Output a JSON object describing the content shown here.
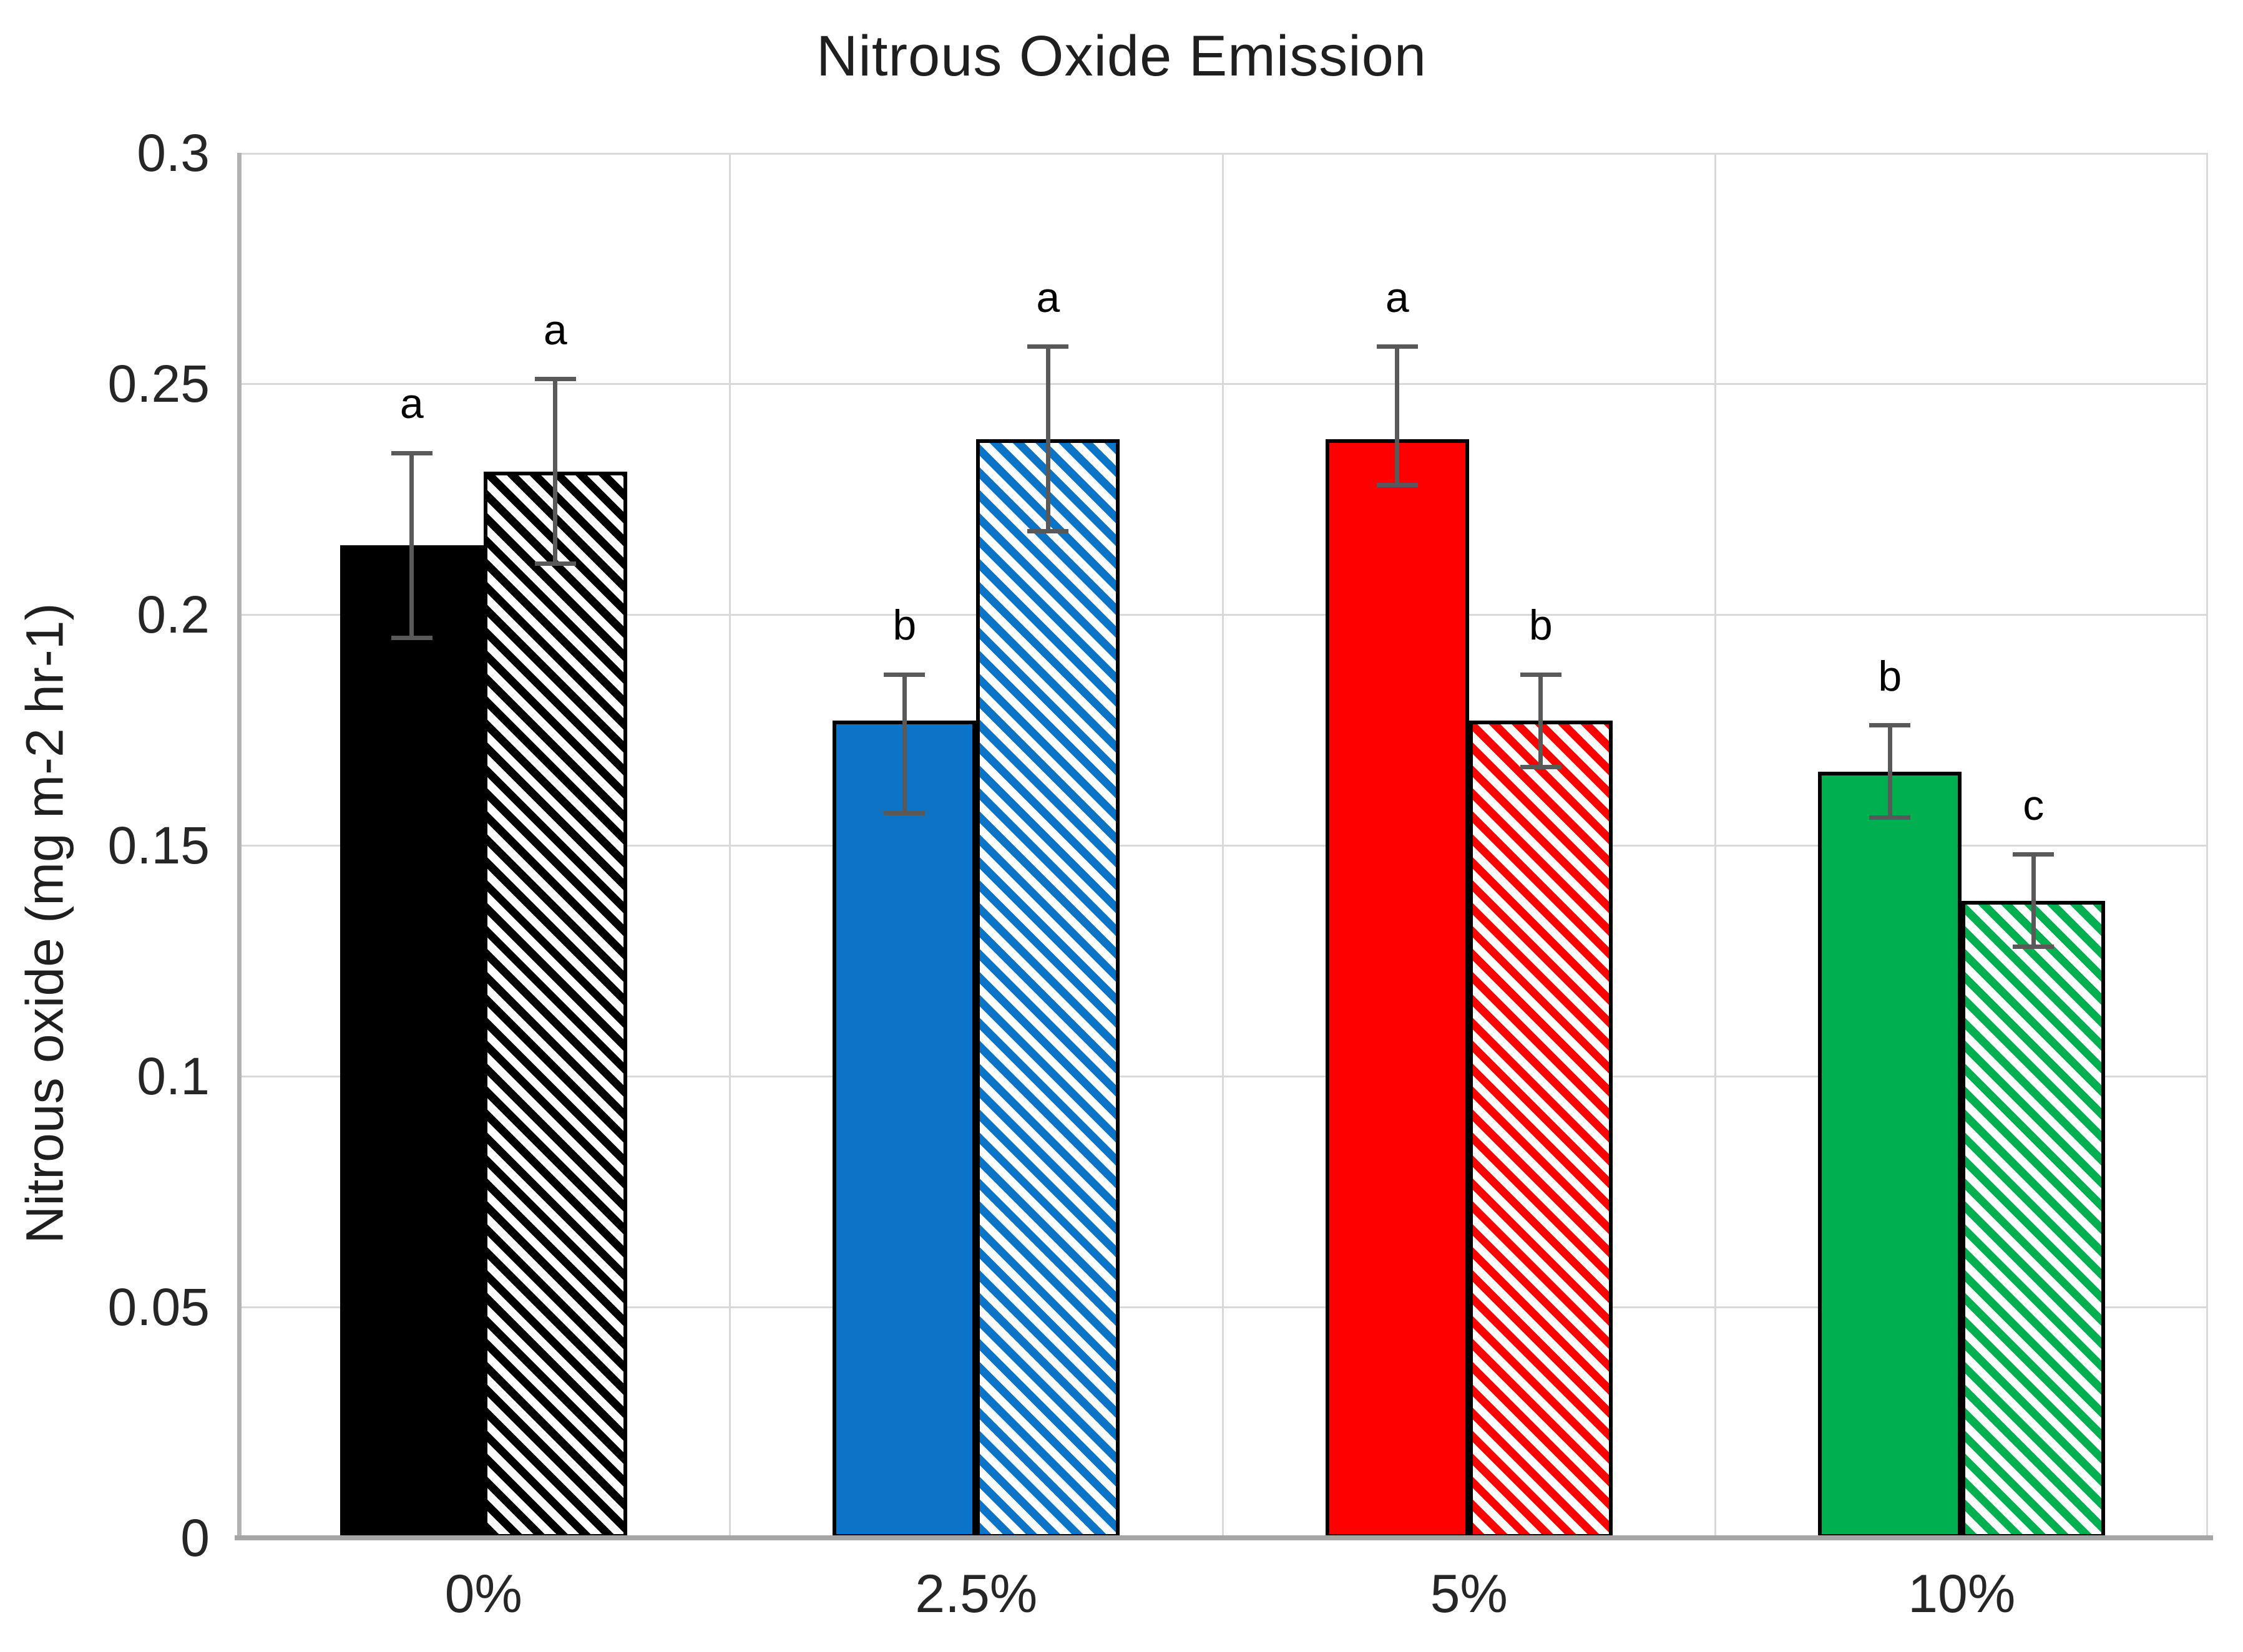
{
  "figure": {
    "title": "Nitrous Oxide Emission",
    "y_axis_title": "Nitrous oxide (mg m-2 hr-1)"
  },
  "chart_data": {
    "type": "bar",
    "title": "Nitrous Oxide Emission",
    "xlabel": "",
    "ylabel": "Nitrous oxide (mg m-2 hr-1)",
    "ylim": [
      0,
      0.3
    ],
    "ytick_interval": 0.05,
    "ytick_labels": [
      "0.3",
      "0.25",
      "0.2",
      "0.15",
      "0.1",
      "0.05",
      "0"
    ],
    "grid": true,
    "legend_position": "none",
    "categories": [
      "0%",
      "2.5%",
      "5%",
      "10%"
    ],
    "series": [
      {
        "name": "solid-fill",
        "pattern": "solid",
        "values": [
          0.215,
          0.177,
          0.238,
          0.166
        ],
        "error_up": [
          0.02,
          0.01,
          0.02,
          0.01
        ],
        "error_down": [
          0.02,
          0.02,
          0.01,
          0.01
        ],
        "sig_letters": [
          "a",
          "b",
          "a",
          "b"
        ],
        "colors": [
          "#000000",
          "#0c74c6",
          "#ff0000",
          "#00b050"
        ]
      },
      {
        "name": "diagonal-hatch-fill",
        "pattern": "diagonal-hatch",
        "values": [
          0.231,
          0.238,
          0.177,
          0.138
        ],
        "error_up": [
          0.02,
          0.02,
          0.01,
          0.01
        ],
        "error_down": [
          0.02,
          0.02,
          0.01,
          0.01
        ],
        "sig_letters": [
          "a",
          "a",
          "b",
          "c"
        ],
        "colors": [
          "#000000",
          "#0c74c6",
          "#ff0000",
          "#00b050"
        ]
      }
    ]
  },
  "style": {
    "gridline_color": "#d9d9d9",
    "y_axis_line_color": "#b3b3b3",
    "x_axis_line_color": "#a6a6a6",
    "error_bar_color": "#595959",
    "text_color": "#262626",
    "hatch_background": "#ffffff",
    "bar_border_color": "#000000"
  }
}
